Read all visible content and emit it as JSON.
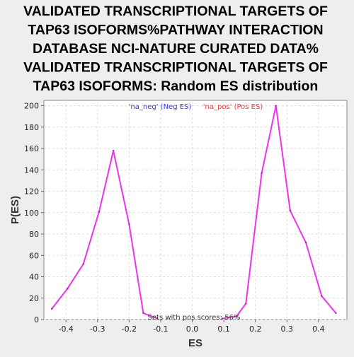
{
  "chart_data": {
    "type": "line",
    "title_lines": [
      "VALIDATED TRANSCRIPTIONAL TARGETS OF",
      "TAP63 ISOFORMS%PATHWAY INTERACTION",
      "DATABASE NCI-NATURE CURATED DATA%",
      "VALIDATED TRANSCRIPTIONAL TARGETS OF",
      "TAP63 ISOFORMS: Random ES distribution"
    ],
    "xlabel": "ES",
    "ylabel": "P(ES)",
    "xlim": [
      -0.47,
      0.49
    ],
    "ylim": [
      0,
      205
    ],
    "x_ticks": [
      "-0.4",
      "-0.3",
      "-0.2",
      "-0.1",
      "0.0",
      "0.1",
      "0.2",
      "0.3",
      "0.4"
    ],
    "y_ticks": [
      "0",
      "20",
      "40",
      "60",
      "80",
      "100",
      "120",
      "140",
      "160",
      "180",
      "200"
    ],
    "grid": true,
    "legend": [
      {
        "label": "'na_neg' (Neg ES)",
        "color": "#3333ff"
      },
      {
        "label": "'na_pos' (Pos ES)",
        "color": "#ff3333"
      }
    ],
    "annotation": "Sets with pos scores: 56%",
    "line_color": "#ee33ee",
    "series": [
      {
        "name": "na_neg",
        "x": [
          -0.445,
          -0.395,
          -0.345,
          -0.295,
          -0.25,
          -0.2,
          -0.155,
          -0.11
        ],
        "y": [
          10,
          29,
          52,
          101,
          158,
          89,
          6,
          1
        ]
      },
      {
        "name": "na_pos",
        "x": [
          0.095,
          0.14,
          0.17,
          0.22,
          0.265,
          0.31,
          0.36,
          0.41,
          0.455
        ],
        "y": [
          1,
          3,
          15,
          137,
          200,
          102,
          72,
          22,
          6
        ]
      }
    ]
  }
}
